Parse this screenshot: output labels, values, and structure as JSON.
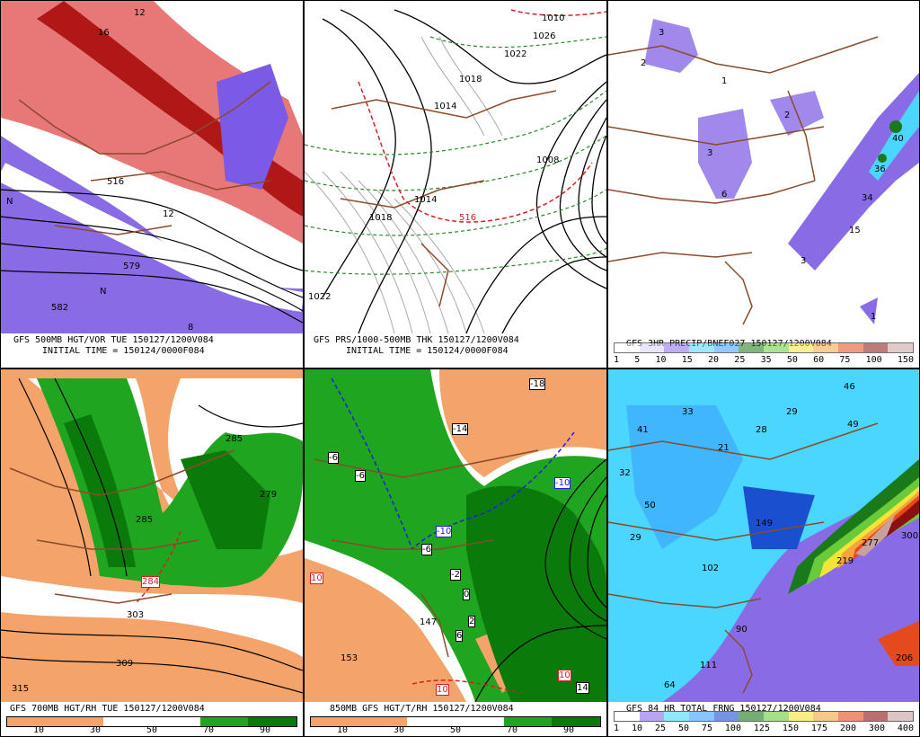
{
  "panels": {
    "p1": {
      "title": "GFS 500MB HGT/VOR TUE 150127/1200V084",
      "subtitle": "INITIAL TIME = 150124/0000F084",
      "labels": [
        "12",
        "16",
        "516",
        "12",
        "579",
        "582",
        "N",
        "8",
        "N"
      ]
    },
    "p2": {
      "title": "GFS PRS/1000-500MB THK 150127/1200V084",
      "subtitle": "INITIAL TIME = 150124/0000F084",
      "labels": [
        "1010",
        "1026",
        "1022",
        "1018",
        "1014",
        "1014",
        "1018",
        "1022",
        "1008",
        "516"
      ]
    },
    "p3": {
      "title": "GFS 3HR PRECIP/BNEF027 150127/1200V084",
      "ticks": [
        "1",
        "5",
        "10",
        "15",
        "20",
        "25",
        "35",
        "50",
        "60",
        "75",
        "100",
        "150"
      ],
      "labels": [
        "3",
        "2",
        "1",
        "2",
        "3",
        "6",
        "40",
        "36",
        "34",
        "15",
        "3",
        "1"
      ]
    },
    "p4": {
      "title": "GFS 700MB HGT/RH TUE 150127/1200V084",
      "ticks": [
        "10",
        "30",
        "50",
        "70",
        "90"
      ],
      "labels": [
        "285",
        "279",
        "285",
        "284",
        "303",
        "309",
        "315"
      ]
    },
    "p5": {
      "title": "850MB GFS HGT/T/RH 150127/1200V084",
      "ticks": [
        "10",
        "30",
        "50",
        "70",
        "90"
      ],
      "labels": [
        "-18",
        "-14",
        "-6",
        "-6",
        "-10",
        "-10",
        "-6",
        "-2",
        "0",
        "2",
        "6",
        "147",
        "153",
        "10",
        "10",
        "10",
        "14"
      ]
    },
    "p6": {
      "title": "GFS 84 HR TOTAL FRNG 150127/1200V084",
      "ticks": [
        "1",
        "10",
        "25",
        "50",
        "75",
        "100",
        "125",
        "150",
        "175",
        "200",
        "300",
        "400"
      ],
      "labels": [
        "46",
        "33",
        "29",
        "41",
        "28",
        "49",
        "21",
        "32",
        "50",
        "29",
        "149",
        "102",
        "219",
        "277",
        "300",
        "90",
        "111",
        "64",
        "206"
      ]
    }
  },
  "colors": {
    "state_lines": "#8b4a2b",
    "rh_green": "#1fa51f",
    "rh_dark_green": "#0a7a0a",
    "dry_orange": "#f4a46a",
    "vort_red": "#d62020",
    "vort_purple": "#7a5ae6",
    "precip_purple": "#8a6be6",
    "precip_cyan": "#4ad6ff"
  }
}
